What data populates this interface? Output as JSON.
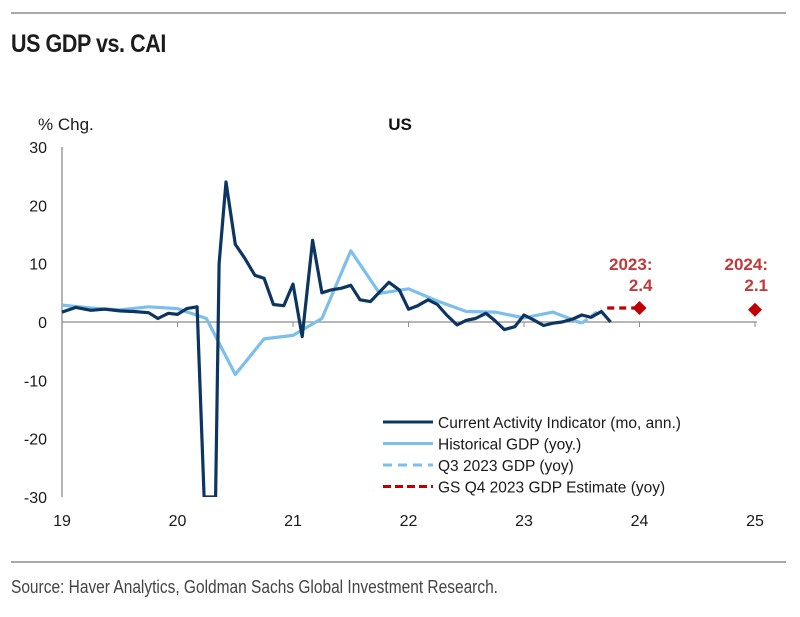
{
  "page": {
    "title": "US GDP vs. CAI",
    "source": "Source: Haver Analytics, Goldman Sachs Global Investment Research."
  },
  "colors": {
    "cai": "#0d3561",
    "gdp": "#7bbfea",
    "estimate": "#c00000",
    "annotation": "#c0393b",
    "axis": "#8c8c8c"
  },
  "chart_data": {
    "type": "line",
    "title": "US",
    "ylabel": "% Chg.",
    "xlabel": "",
    "ylim": [
      -30,
      30
    ],
    "xlim": [
      2019,
      2025
    ],
    "yticks": [
      30,
      20,
      10,
      0,
      -10,
      -20,
      -30
    ],
    "xticks": [
      {
        "value": 2019,
        "label": "19"
      },
      {
        "value": 2020,
        "label": "20"
      },
      {
        "value": 2021,
        "label": "21"
      },
      {
        "value": 2022,
        "label": "22"
      },
      {
        "value": 2023,
        "label": "23"
      },
      {
        "value": 2024,
        "label": "24"
      },
      {
        "value": 2025,
        "label": "25"
      }
    ],
    "grid": false,
    "legend_position": "bottom-right",
    "series": [
      {
        "name": "Current Activity Indicator (mo, ann.)",
        "style": "solid-dark",
        "x": [
          2019.0,
          2019.12,
          2019.25,
          2019.37,
          2019.5,
          2019.62,
          2019.75,
          2019.83,
          2019.92,
          2020.0,
          2020.08,
          2020.17,
          2020.23,
          2020.33,
          2020.36,
          2020.42,
          2020.5,
          2020.58,
          2020.67,
          2020.75,
          2020.83,
          2020.92,
          2021.0,
          2021.08,
          2021.17,
          2021.25,
          2021.33,
          2021.42,
          2021.5,
          2021.58,
          2021.67,
          2021.83,
          2021.92,
          2022.0,
          2022.08,
          2022.17,
          2022.25,
          2022.33,
          2022.42,
          2022.5,
          2022.58,
          2022.67,
          2022.75,
          2022.83,
          2022.92,
          2023.0,
          2023.08,
          2023.17,
          2023.25,
          2023.33,
          2023.42,
          2023.5,
          2023.58,
          2023.67,
          2023.75
        ],
        "values": [
          1.7,
          2.5,
          2.0,
          2.2,
          1.9,
          1.8,
          1.6,
          0.6,
          1.5,
          1.3,
          2.3,
          2.6,
          -30,
          -30,
          10,
          24,
          13.3,
          11,
          8,
          7.5,
          3.0,
          2.8,
          6.5,
          -2.5,
          14,
          5,
          5.5,
          5.8,
          6.3,
          3.8,
          3.5,
          6.8,
          5.5,
          2.2,
          2.8,
          3.8,
          3.0,
          1.2,
          -0.5,
          0.3,
          0.6,
          1.5,
          0.2,
          -1.3,
          -0.8,
          1.2,
          0.4,
          -0.6,
          -0.2,
          0.0,
          0.5,
          1.2,
          0.8,
          1.8,
          0.0
        ]
      },
      {
        "name": "Historical GDP (yoy.)",
        "style": "solid-light",
        "x": [
          2019.0,
          2019.25,
          2019.5,
          2019.75,
          2020.0,
          2020.25,
          2020.5,
          2020.75,
          2021.0,
          2021.25,
          2021.5,
          2021.75,
          2022.0,
          2022.25,
          2022.5,
          2022.75,
          2023.0,
          2023.25,
          2023.5
        ],
        "values": [
          2.9,
          2.4,
          2.1,
          2.6,
          2.3,
          0.6,
          -9.0,
          -2.9,
          -2.3,
          0.6,
          12.2,
          4.9,
          5.7,
          3.6,
          1.8,
          1.7,
          0.7,
          1.7,
          -0.2
        ]
      },
      {
        "name": "Q3 2023 GDP (yoy)",
        "style": "dashed-light",
        "x": [
          2023.5,
          2023.67
        ],
        "values": [
          -0.2,
          2.3
        ]
      },
      {
        "name": "GS Q4 2023 GDP Estimate (yoy)",
        "style": "dashed-red",
        "x": [
          2023.72,
          2024.0
        ],
        "values": [
          2.4,
          2.4
        ]
      }
    ],
    "markers": [
      {
        "x": 2024.0,
        "value": 2.4,
        "label_line1": "2023:",
        "label_line2": "2.4"
      },
      {
        "x": 2025.0,
        "value": 2.1,
        "label_line1": "2024:",
        "label_line2": "2.1"
      }
    ]
  }
}
